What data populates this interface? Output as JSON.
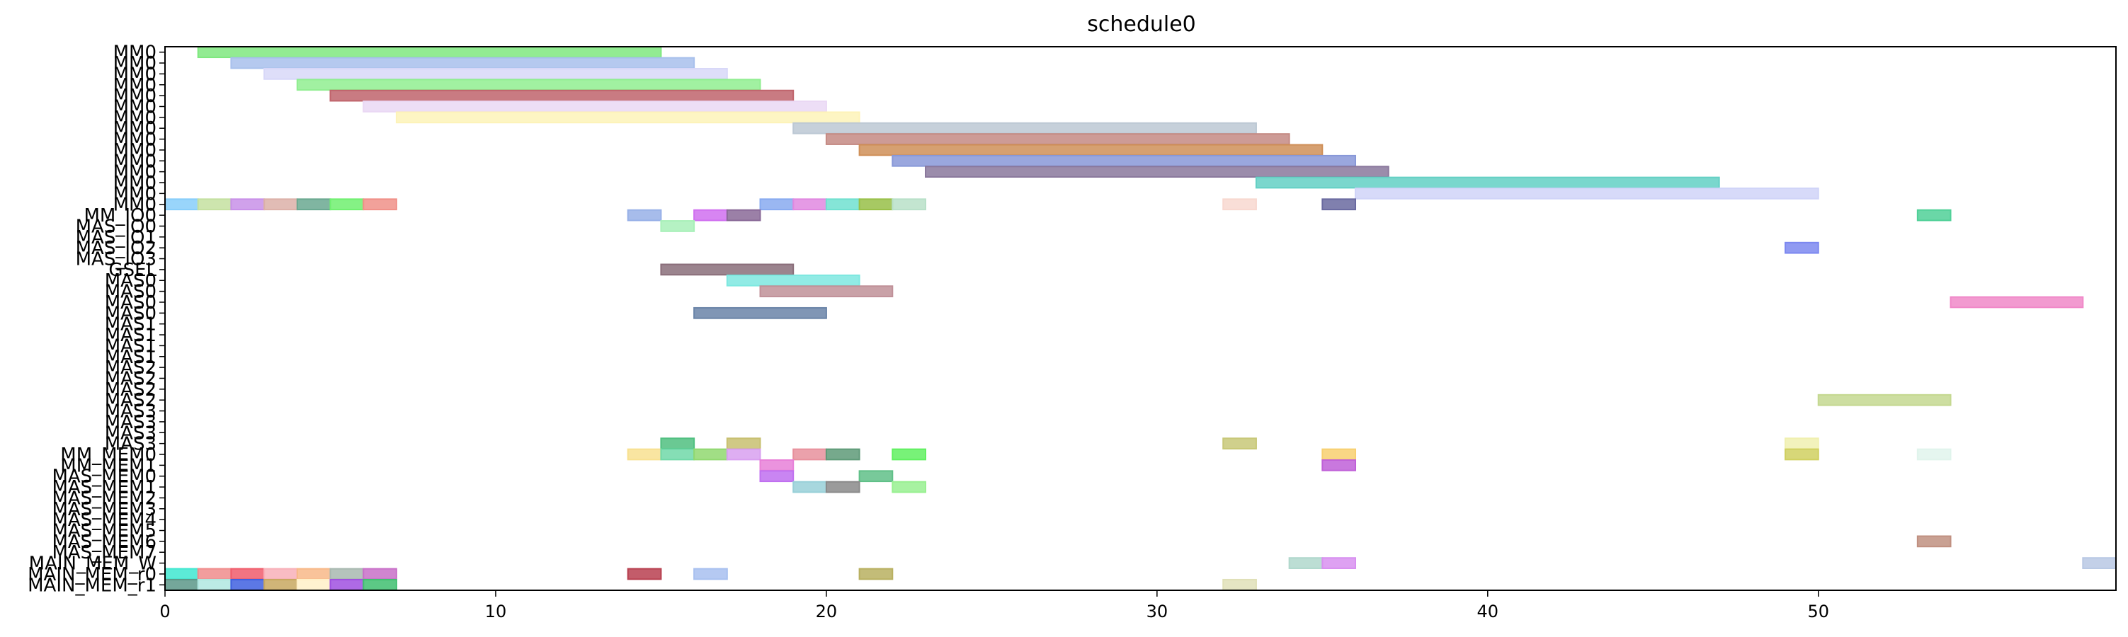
{
  "chart_data": {
    "type": "gantt",
    "title": "schedule0",
    "xlabel": "",
    "ylabel": "",
    "xlim": [
      0,
      59
    ],
    "x_ticks": [
      0,
      10,
      20,
      30,
      40,
      50
    ],
    "grid": false,
    "rows": [
      "MM0",
      "MM0",
      "MM0",
      "MM0",
      "MM0",
      "MM0",
      "MM0",
      "MM0",
      "MM0",
      "MM0",
      "MM0",
      "MM0",
      "MM0",
      "MM0",
      "MM0",
      "MM_IO0",
      "MAS_IO0",
      "MAS_IO1",
      "MAS_IO2",
      "MAS_IO3",
      "GSEL",
      "MAS0",
      "MAS0",
      "MAS0",
      "MAS0",
      "MAS1",
      "MAS1",
      "MAS1",
      "MAS1",
      "MAS2",
      "MAS2",
      "MAS2",
      "MAS2",
      "MAS3",
      "MAS3",
      "MAS3",
      "MAS3",
      "MM_MEM0",
      "MM_MEM1",
      "MAS_MEM0",
      "MAS_MEM1",
      "MAS_MEM2",
      "MAS_MEM3",
      "MAS_MEM4",
      "MAS_MEM5",
      "MAS_MEM6",
      "MAS_MEM7",
      "MAIN_MEM_W",
      "MAIN_MEM_r0",
      "MAIN_MEM_r1"
    ],
    "tasks": [
      {
        "row": 0,
        "start": 1,
        "end": 15,
        "color": "#7fe87f"
      },
      {
        "row": 1,
        "start": 2,
        "end": 16,
        "color": "#a8c0ec"
      },
      {
        "row": 2,
        "start": 3,
        "end": 17,
        "color": "#d8d8f8"
      },
      {
        "row": 3,
        "start": 4,
        "end": 18,
        "color": "#90ee90"
      },
      {
        "row": 4,
        "start": 5,
        "end": 19,
        "color": "#c0646c"
      },
      {
        "row": 5,
        "start": 6,
        "end": 20,
        "color": "#ead8f4"
      },
      {
        "row": 6,
        "start": 7,
        "end": 21,
        "color": "#fdf3b8"
      },
      {
        "row": 7,
        "start": 19,
        "end": 33,
        "color": "#bcc8d4"
      },
      {
        "row": 8,
        "start": 20,
        "end": 34,
        "color": "#c48a84"
      },
      {
        "row": 9,
        "start": 21,
        "end": 35,
        "color": "#cf8f58"
      },
      {
        "row": 10,
        "start": 22,
        "end": 36,
        "color": "#8898d8"
      },
      {
        "row": 11,
        "start": 23,
        "end": 37,
        "color": "#8a789c"
      },
      {
        "row": 12,
        "start": 33,
        "end": 47,
        "color": "#63d0c4"
      },
      {
        "row": 13,
        "start": 36,
        "end": 50,
        "color": "#d0d4f8"
      },
      {
        "row": 14,
        "start": 0,
        "end": 1,
        "color": "#87cefa"
      },
      {
        "row": 14,
        "start": 1,
        "end": 2,
        "color": "#c4e0a0"
      },
      {
        "row": 14,
        "start": 2,
        "end": 3,
        "color": "#c890e8"
      },
      {
        "row": 14,
        "start": 3,
        "end": 4,
        "color": "#dcb0a8"
      },
      {
        "row": 14,
        "start": 4,
        "end": 5,
        "color": "#6aa890"
      },
      {
        "row": 14,
        "start": 5,
        "end": 6,
        "color": "#70f070"
      },
      {
        "row": 14,
        "start": 6,
        "end": 7,
        "color": "#f09088"
      },
      {
        "row": 14,
        "start": 18,
        "end": 19,
        "color": "#88aaf0"
      },
      {
        "row": 14,
        "start": 19,
        "end": 20,
        "color": "#e088e0"
      },
      {
        "row": 14,
        "start": 20,
        "end": 21,
        "color": "#70e0d0"
      },
      {
        "row": 14,
        "start": 21,
        "end": 22,
        "color": "#98c048"
      },
      {
        "row": 14,
        "start": 22,
        "end": 23,
        "color": "#b8e0c8"
      },
      {
        "row": 14,
        "start": 32,
        "end": 33,
        "color": "#f8d8d0"
      },
      {
        "row": 14,
        "start": 35,
        "end": 36,
        "color": "#6a6aa0"
      },
      {
        "row": 15,
        "start": 14,
        "end": 15,
        "color": "#98b0e8"
      },
      {
        "row": 15,
        "start": 16,
        "end": 17,
        "color": "#d070f0"
      },
      {
        "row": 15,
        "start": 17,
        "end": 18,
        "color": "#8a6a98"
      },
      {
        "row": 15,
        "start": 53,
        "end": 54,
        "color": "#50d098"
      },
      {
        "row": 16,
        "start": 15,
        "end": 16,
        "color": "#a8f0b8"
      },
      {
        "row": 18,
        "start": 49,
        "end": 50,
        "color": "#7c88f0"
      },
      {
        "row": 20,
        "start": 15,
        "end": 19,
        "color": "#8a6e7a"
      },
      {
        "row": 21,
        "start": 17,
        "end": 21,
        "color": "#7ee8e0"
      },
      {
        "row": 22,
        "start": 18,
        "end": 22,
        "color": "#c09098"
      },
      {
        "row": 23,
        "start": 54,
        "end": 58,
        "color": "#f088c8"
      },
      {
        "row": 24,
        "start": 16,
        "end": 20,
        "color": "#6a84a8"
      },
      {
        "row": 32,
        "start": 50,
        "end": 54,
        "color": "#c4d890"
      },
      {
        "row": 36,
        "start": 15,
        "end": 16,
        "color": "#50c080"
      },
      {
        "row": 36,
        "start": 17,
        "end": 18,
        "color": "#c8c070"
      },
      {
        "row": 36,
        "start": 32,
        "end": 33,
        "color": "#c8c878"
      },
      {
        "row": 36,
        "start": 49,
        "end": 50,
        "color": "#f0f0b0"
      },
      {
        "row": 37,
        "start": 14,
        "end": 15,
        "color": "#f8e090"
      },
      {
        "row": 37,
        "start": 15,
        "end": 16,
        "color": "#70d8a8"
      },
      {
        "row": 37,
        "start": 16,
        "end": 17,
        "color": "#90d870"
      },
      {
        "row": 37,
        "start": 17,
        "end": 18,
        "color": "#d8a0f0"
      },
      {
        "row": 37,
        "start": 19,
        "end": 20,
        "color": "#e8909c"
      },
      {
        "row": 37,
        "start": 20,
        "end": 21,
        "color": "#5e9a78"
      },
      {
        "row": 37,
        "start": 22,
        "end": 23,
        "color": "#60f060"
      },
      {
        "row": 37,
        "start": 35,
        "end": 36,
        "color": "#f8d070"
      },
      {
        "row": 37,
        "start": 49,
        "end": 50,
        "color": "#d0d060"
      },
      {
        "row": 37,
        "start": 53,
        "end": 54,
        "color": "#e0f4ec"
      },
      {
        "row": 38,
        "start": 18,
        "end": 19,
        "color": "#e880d8"
      },
      {
        "row": 38,
        "start": 35,
        "end": 36,
        "color": "#c060d8"
      },
      {
        "row": 39,
        "start": 18,
        "end": 19,
        "color": "#c070f0"
      },
      {
        "row": 39,
        "start": 21,
        "end": 22,
        "color": "#60c088"
      },
      {
        "row": 40,
        "start": 19,
        "end": 20,
        "color": "#98d0d8"
      },
      {
        "row": 40,
        "start": 20,
        "end": 21,
        "color": "#8a8a8a"
      },
      {
        "row": 40,
        "start": 22,
        "end": 23,
        "color": "#98f090"
      },
      {
        "row": 45,
        "start": 53,
        "end": 54,
        "color": "#c09080"
      },
      {
        "row": 47,
        "start": 34,
        "end": 35,
        "color": "#b0d8cc"
      },
      {
        "row": 47,
        "start": 35,
        "end": 36,
        "color": "#d890f0"
      },
      {
        "row": 47,
        "start": 58,
        "end": 59,
        "color": "#b8c8e4"
      },
      {
        "row": 48,
        "start": 0,
        "end": 1,
        "color": "#40e8d0"
      },
      {
        "row": 48,
        "start": 1,
        "end": 2,
        "color": "#f08c8c"
      },
      {
        "row": 48,
        "start": 2,
        "end": 3,
        "color": "#f05c6c"
      },
      {
        "row": 48,
        "start": 3,
        "end": 4,
        "color": "#f8b0b8"
      },
      {
        "row": 48,
        "start": 4,
        "end": 5,
        "color": "#f8b888"
      },
      {
        "row": 48,
        "start": 5,
        "end": 6,
        "color": "#a8b8b0"
      },
      {
        "row": 48,
        "start": 6,
        "end": 7,
        "color": "#c870c8"
      },
      {
        "row": 48,
        "start": 14,
        "end": 15,
        "color": "#b84050"
      },
      {
        "row": 48,
        "start": 16,
        "end": 17,
        "color": "#a8c0f0"
      },
      {
        "row": 48,
        "start": 21,
        "end": 22,
        "color": "#b8b060"
      },
      {
        "row": 49,
        "start": 0,
        "end": 1,
        "color": "#5c9888"
      },
      {
        "row": 49,
        "start": 1,
        "end": 2,
        "color": "#b0e8e0"
      },
      {
        "row": 49,
        "start": 2,
        "end": 3,
        "color": "#4060e0"
      },
      {
        "row": 49,
        "start": 3,
        "end": 4,
        "color": "#c8a860"
      },
      {
        "row": 49,
        "start": 4,
        "end": 5,
        "color": "#fff0c8"
      },
      {
        "row": 49,
        "start": 5,
        "end": 6,
        "color": "#a050e0"
      },
      {
        "row": 49,
        "start": 6,
        "end": 7,
        "color": "#40c070"
      },
      {
        "row": 49,
        "start": 32,
        "end": 33,
        "color": "#e0e0b8"
      }
    ]
  }
}
